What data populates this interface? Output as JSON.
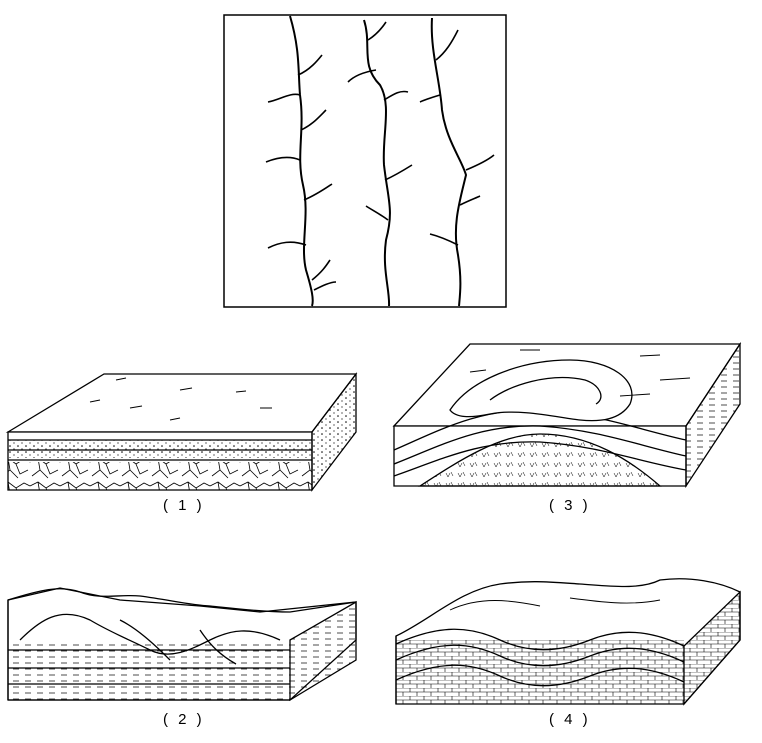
{
  "colors": {
    "ink": "#000000",
    "paper": "#ffffff"
  },
  "captions": {
    "block1": "( 1 )",
    "block2": "( 2 )",
    "block3": "( 3 )",
    "block4": "( 4 )"
  }
}
